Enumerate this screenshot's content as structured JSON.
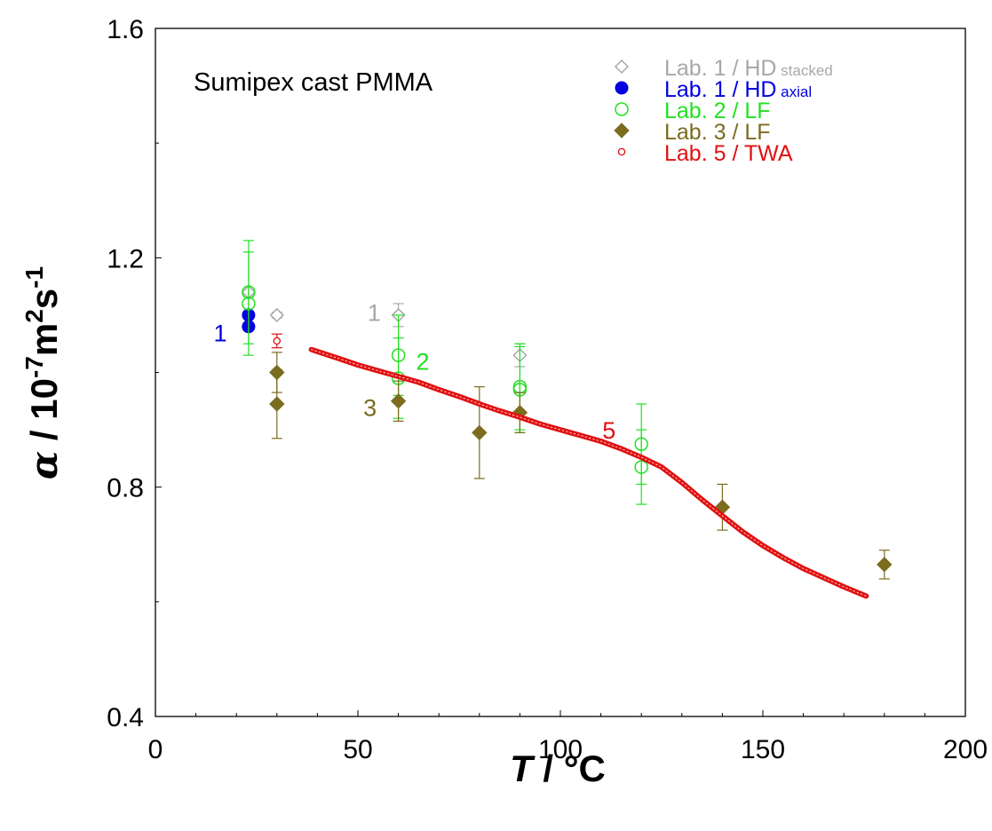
{
  "chart_data": {
    "type": "scatter",
    "title": "Sumipex cast PMMA",
    "xlabel": {
      "var": "T",
      "sep": " / ",
      "unit": "°C"
    },
    "ylabel": {
      "var": "α",
      "sep": " / ",
      "pre": "10",
      "exp1": "-7",
      "unit1": "m",
      "exp2": "2",
      "unit2": "s",
      "exp3": "-1"
    },
    "xlim": [
      0,
      200
    ],
    "ylim": [
      0.4,
      1.6
    ],
    "xticks": [
      "0",
      "50",
      "100",
      "150",
      "200"
    ],
    "yticks": [
      "0.4",
      "0.8",
      "1.2",
      "1.6"
    ],
    "grid": false,
    "legend_position": "top-right",
    "series": [
      {
        "name": "Lab. 1 / HD",
        "name_suffix": "stacked",
        "marker": "open-diamond",
        "color": "#a8a8a8",
        "points": [
          {
            "x": 23,
            "y": 1.14
          },
          {
            "x": 30,
            "y": 1.1,
            "err": 0.005
          },
          {
            "x": 60,
            "y": 1.1,
            "err": 0.02
          },
          {
            "x": 90,
            "y": 1.03,
            "err": 0.02
          }
        ]
      },
      {
        "name": "Lab. 1 / HD",
        "name_suffix": "axial",
        "marker": "filled-circle",
        "color": "#0000e0",
        "points": [
          {
            "x": 23,
            "y": 1.1
          },
          {
            "x": 23,
            "y": 1.08
          }
        ]
      },
      {
        "name": "Lab. 2 / LF",
        "name_suffix": "",
        "marker": "open-circle",
        "color": "#22e022",
        "points": [
          {
            "x": 23,
            "y": 1.14,
            "err": 0.09
          },
          {
            "x": 23,
            "y": 1.12,
            "err": 0.09
          },
          {
            "x": 60,
            "y": 1.03,
            "err": 0.07
          },
          {
            "x": 60,
            "y": 0.99,
            "err": 0.07
          },
          {
            "x": 90,
            "y": 0.975,
            "err": 0.075
          },
          {
            "x": 90,
            "y": 0.97,
            "err": 0.075
          },
          {
            "x": 120,
            "y": 0.875,
            "err": 0.07
          },
          {
            "x": 120,
            "y": 0.835,
            "err": 0.065
          }
        ]
      },
      {
        "name": "Lab. 3 / LF",
        "name_suffix": "",
        "marker": "filled-diamond",
        "color": "#7b6c1e",
        "points": [
          {
            "x": 30,
            "y": 1.0,
            "err": 0.035
          },
          {
            "x": 30,
            "y": 0.945,
            "err": 0.06
          },
          {
            "x": 60,
            "y": 0.95,
            "err": 0.035
          },
          {
            "x": 80,
            "y": 0.895,
            "err": 0.08
          },
          {
            "x": 90,
            "y": 0.93,
            "err": 0.035
          },
          {
            "x": 140,
            "y": 0.765,
            "err": 0.04
          },
          {
            "x": 180,
            "y": 0.665,
            "err": 0.025
          }
        ]
      },
      {
        "name": "Lab. 5 / TWA",
        "name_suffix": "",
        "marker": "small-open-circle",
        "color": "#e01010",
        "points": [
          {
            "x": 30,
            "y": 1.055,
            "err": 0.012
          }
        ],
        "curve": [
          {
            "x": 38.5,
            "y": 1.04
          },
          {
            "x": 45,
            "y": 1.025
          },
          {
            "x": 50,
            "y": 1.013
          },
          {
            "x": 55,
            "y": 1.003
          },
          {
            "x": 60,
            "y": 0.993
          },
          {
            "x": 65,
            "y": 0.983
          },
          {
            "x": 70,
            "y": 0.97
          },
          {
            "x": 75,
            "y": 0.958
          },
          {
            "x": 80,
            "y": 0.945
          },
          {
            "x": 85,
            "y": 0.933
          },
          {
            "x": 90,
            "y": 0.922
          },
          {
            "x": 95,
            "y": 0.91
          },
          {
            "x": 100,
            "y": 0.9
          },
          {
            "x": 105,
            "y": 0.89
          },
          {
            "x": 110,
            "y": 0.88
          },
          {
            "x": 115,
            "y": 0.867
          },
          {
            "x": 120,
            "y": 0.852
          },
          {
            "x": 125,
            "y": 0.835
          },
          {
            "x": 130,
            "y": 0.808
          },
          {
            "x": 135,
            "y": 0.778
          },
          {
            "x": 140,
            "y": 0.75
          },
          {
            "x": 145,
            "y": 0.722
          },
          {
            "x": 150,
            "y": 0.698
          },
          {
            "x": 155,
            "y": 0.677
          },
          {
            "x": 160,
            "y": 0.658
          },
          {
            "x": 165,
            "y": 0.642
          },
          {
            "x": 170,
            "y": 0.626
          },
          {
            "x": 175.5,
            "y": 0.61
          }
        ]
      }
    ],
    "annotations": [
      {
        "text": "1",
        "x": 16,
        "y": 1.07,
        "color": "#0000e0"
      },
      {
        "text": "1",
        "x": 54,
        "y": 1.105,
        "color": "#a8a8a8"
      },
      {
        "text": "2",
        "x": 66,
        "y": 1.02,
        "color": "#22e022"
      },
      {
        "text": "3",
        "x": 53,
        "y": 0.94,
        "color": "#7b6c1e"
      },
      {
        "text": "5",
        "x": 112,
        "y": 0.9,
        "color": "#e01010"
      }
    ]
  }
}
